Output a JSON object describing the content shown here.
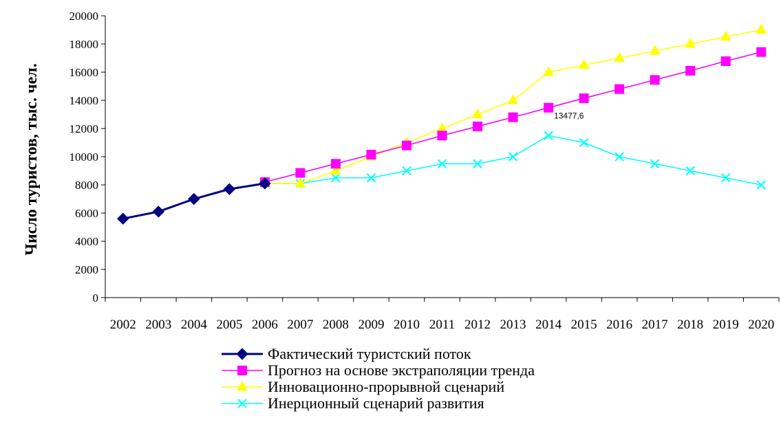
{
  "chart_data": {
    "type": "line",
    "ylabel": "Число туристов, тыс. чел.",
    "xlabel": "",
    "ylim": [
      0,
      20000
    ],
    "yticks": [
      0,
      2000,
      4000,
      6000,
      8000,
      10000,
      12000,
      14000,
      16000,
      18000,
      20000
    ],
    "categories": [
      "2002",
      "2003",
      "2004",
      "2005",
      "2006",
      "2007",
      "2008",
      "2009",
      "2010",
      "2011",
      "2012",
      "2013",
      "2014",
      "2015",
      "2016",
      "2017",
      "2018",
      "2019",
      "2020"
    ],
    "legend_position": "bottom",
    "series": [
      {
        "name": "Фактический туристский поток",
        "color": "#000080",
        "marker": "diamond",
        "values": [
          5600,
          6100,
          7000,
          7700,
          8100,
          null,
          null,
          null,
          null,
          null,
          null,
          null,
          null,
          null,
          null,
          null,
          null,
          null,
          null
        ]
      },
      {
        "name": "Прогноз на основе экстраполяции тренда",
        "color": "#FF00FF",
        "marker": "square",
        "values": [
          null,
          null,
          null,
          null,
          8200,
          8850,
          9500,
          10150,
          10800,
          11500,
          12150,
          12800,
          13477.6,
          14150,
          14800,
          15450,
          16100,
          16780,
          17430
        ]
      },
      {
        "name": "Инновационно-прорывной сценарий",
        "color": "#FFFF00",
        "marker": "triangle",
        "values": [
          null,
          null,
          null,
          null,
          8100,
          8100,
          9000,
          10000,
          11000,
          12000,
          13000,
          14000,
          16000,
          16500,
          17000,
          17500,
          18000,
          18500,
          19000
        ]
      },
      {
        "name": "Инерционный  сценарий развития",
        "color": "#00FFFF",
        "marker": "x",
        "values": [
          null,
          null,
          null,
          null,
          8100,
          8100,
          8500,
          8500,
          9000,
          9500,
          9500,
          10000,
          11500,
          11000,
          10000,
          9500,
          9000,
          8500,
          8000
        ]
      }
    ],
    "annotations": [
      {
        "series_index": 1,
        "point_index": 12,
        "text": "13477,6"
      }
    ]
  }
}
